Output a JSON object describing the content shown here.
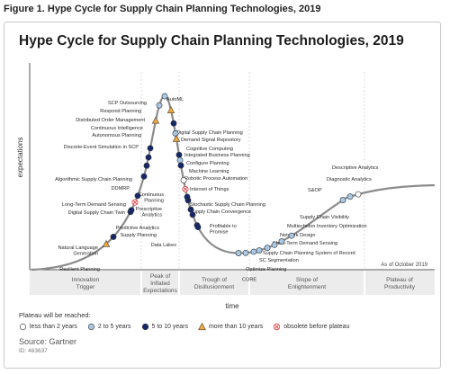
{
  "figure_caption": "Figure 1. Hype Cycle for Supply Chain Planning Technologies, 2019",
  "colors": {
    "curve": "#8c8c8c",
    "less_than_2": "#ffffff",
    "two_to_five": "#a9c8e6",
    "five_to_ten": "#14286b",
    "more_than_10": "#f2a83a",
    "obsolete": "#e04040",
    "band": "#ececec"
  },
  "chart_data": {
    "type": "scatter",
    "title": "Hype Cycle for Supply Chain Planning Technologies, 2019",
    "xlabel": "time",
    "ylabel": "expectations",
    "as_of": "As of October 2019",
    "phases": [
      {
        "label": "Innovation Trigger"
      },
      {
        "label": "Peak of Inflated Expectations"
      },
      {
        "label": "Trough of Disillusionment"
      },
      {
        "label": "Slope of Enlightenment"
      },
      {
        "label": "Plateau of Productivity"
      }
    ],
    "legend_title": "Plateau will be reached:",
    "legend": [
      {
        "key": "lt2",
        "label": "less than 2 years",
        "shape": "circle-white"
      },
      {
        "key": "2to5",
        "label": "2 to 5 years",
        "shape": "circle-light"
      },
      {
        "key": "5to10",
        "label": "5 to 10 years",
        "shape": "circle-dark"
      },
      {
        "key": "gt10",
        "label": "more than 10 years",
        "shape": "triangle"
      },
      {
        "key": "obs",
        "label": "obsolete before plateau",
        "shape": "x-circle"
      }
    ],
    "technologies": [
      {
        "name": "Resilient Planning",
        "cat": "gt10"
      },
      {
        "name": "Natural Language Generation",
        "cat": "5to10"
      },
      {
        "name": "Digital Supply Chain Twin",
        "cat": "5to10"
      },
      {
        "name": "Long-Term Demand Sensing",
        "cat": "5to10"
      },
      {
        "name": "DDMRP",
        "cat": "obs"
      },
      {
        "name": "Algorithmic Supply Chain Planning",
        "cat": "5to10"
      },
      {
        "name": "Discrete-Event Simulation in SCP",
        "cat": "5to10"
      },
      {
        "name": "Autonomous Planning",
        "cat": "5to10"
      },
      {
        "name": "Continuous Intelligence",
        "cat": "5to10"
      },
      {
        "name": "Distributed Order Management",
        "cat": "5to10"
      },
      {
        "name": "Respond Planning",
        "cat": "gt10"
      },
      {
        "name": "SCP Outsourcing",
        "cat": "2to5"
      },
      {
        "name": "AutoML",
        "cat": "2to5"
      },
      {
        "name": "Digital Supply Chain Planning",
        "cat": "gt10"
      },
      {
        "name": "Demand Signal Repository",
        "cat": "5to10"
      },
      {
        "name": "Cognitive Computing",
        "cat": "2to5"
      },
      {
        "name": "Integrated Business Planning",
        "cat": "gt10"
      },
      {
        "name": "Configure Planning",
        "cat": "5to10"
      },
      {
        "name": "Machine Learning",
        "cat": "2to5"
      },
      {
        "name": "Robotic Process Automation",
        "cat": "2to5"
      },
      {
        "name": "Internet of Things",
        "cat": "lt2"
      },
      {
        "name": "Continuous Planning",
        "cat": "5to10"
      },
      {
        "name": "Stochastic Supply Chain Planning",
        "cat": "obs"
      },
      {
        "name": "Supply Chain Convergence",
        "cat": "5to10"
      },
      {
        "name": "Prescriptive Analytics",
        "cat": "5to10"
      },
      {
        "name": "Predictive Analytics",
        "cat": "5to10"
      },
      {
        "name": "Supply Planning",
        "cat": "5to10"
      },
      {
        "name": "Profitable to Promise",
        "cat": "5to10"
      },
      {
        "name": "Data Lakes",
        "cat": "5to10"
      },
      {
        "name": "CORE",
        "cat": "2to5"
      },
      {
        "name": "Optimize Planning",
        "cat": "2to5"
      },
      {
        "name": "SC Segmentation",
        "cat": "2to5"
      },
      {
        "name": "Supply Chain Planning System of Record",
        "cat": "2to5"
      },
      {
        "name": "Short-Term Demand Sensing",
        "cat": "2to5"
      },
      {
        "name": "Network Design",
        "cat": "2to5"
      },
      {
        "name": "Multiechelon Inventory Optimization",
        "cat": "2to5"
      },
      {
        "name": "Supply Chain Visibility",
        "cat": "2to5"
      },
      {
        "name": "S&OP",
        "cat": "2to5"
      },
      {
        "name": "Diagnostic Analytics",
        "cat": "2to5"
      },
      {
        "name": "Descriptive Analytics",
        "cat": "lt2"
      }
    ]
  },
  "source": "Source: Gartner",
  "doc_id": "ID: 463637"
}
